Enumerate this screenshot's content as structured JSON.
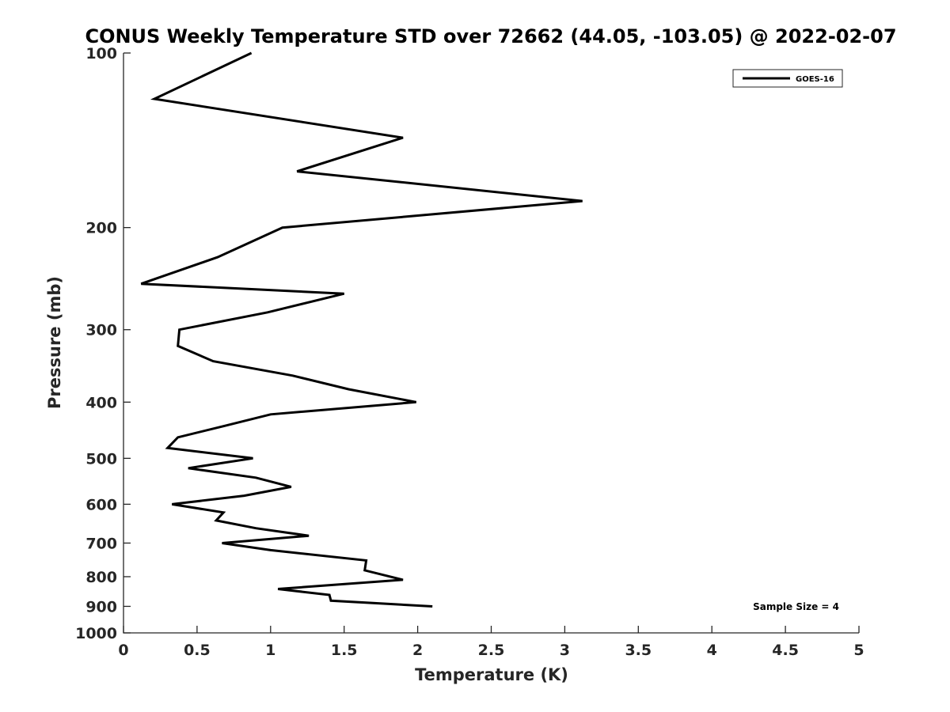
{
  "chart_data": {
    "type": "line",
    "title": "CONUS Weekly Temperature STD over 72662 (44.05, -103.05) @ 2022-02-07",
    "xlabel": "Temperature (K)",
    "ylabel": "Pressure (mb)",
    "xlim": [
      0,
      5
    ],
    "ylim": [
      1000,
      100
    ],
    "yscale": "log",
    "x_ticks": [
      0,
      0.5,
      1,
      1.5,
      2,
      2.5,
      3,
      3.5,
      4,
      4.5,
      5
    ],
    "x_tick_labels": [
      "0",
      "0.5",
      "1",
      "1.5",
      "2",
      "2.5",
      "3",
      "3.5",
      "4",
      "4.5",
      "5"
    ],
    "y_ticks": [
      100,
      200,
      300,
      400,
      500,
      600,
      700,
      800,
      900,
      1000
    ],
    "y_tick_labels": [
      "100",
      "200",
      "300",
      "400",
      "500",
      "600",
      "700",
      "800",
      "900",
      "1000"
    ],
    "grid": false,
    "legend_position": "top-right",
    "annotation": "Sample Size = 4",
    "series": [
      {
        "name": "GOES-16",
        "color": "#000000",
        "x": [
          0.87,
          0.21,
          1.9,
          1.18,
          3.12,
          1.08,
          0.64,
          0.12,
          1.5,
          0.98,
          0.38,
          0.37,
          0.61,
          1.15,
          1.53,
          1.99,
          1.0,
          0.68,
          0.37,
          0.3,
          0.88,
          0.44,
          0.9,
          1.14,
          0.82,
          0.33,
          0.68,
          0.63,
          0.9,
          1.26,
          0.67,
          1.0,
          1.65,
          1.64,
          1.9,
          1.05,
          1.4,
          1.41,
          2.1
        ],
        "y": [
          100,
          120,
          140,
          160,
          180,
          200,
          225,
          250,
          260,
          280,
          300,
          320,
          340,
          360,
          380,
          400,
          420,
          440,
          460,
          480,
          500,
          520,
          540,
          560,
          580,
          600,
          620,
          640,
          660,
          680,
          700,
          720,
          750,
          780,
          810,
          840,
          860,
          880,
          900
        ]
      }
    ]
  }
}
